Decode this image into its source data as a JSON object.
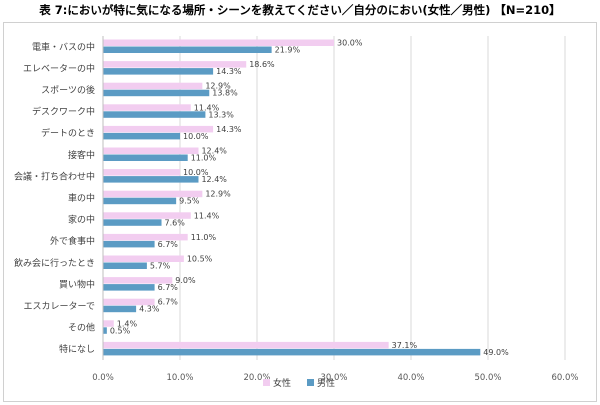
{
  "title": "表 7:においが特に気になる場所・シーンを教えてください／自分のにおい(女性／男性) 【N=210】",
  "chart_data": {
    "type": "bar",
    "orientation": "horizontal",
    "title": "表 7:においが特に気になる場所・シーンを教えてください／自分のにおい(女性／男性) 【N=210】",
    "categories": [
      "電車・バスの中",
      "エレベーターの中",
      "スポーツの後",
      "デスクワーク中",
      "デートのとき",
      "接客中",
      "会議・打ち合わせ中",
      "車の中",
      "家の中",
      "外で食事中",
      "飲み会に行ったとき",
      "買い物中",
      "エスカレーターで",
      "その他",
      "特になし"
    ],
    "series": [
      {
        "name": "女性",
        "color": "#f2cdf0",
        "values": [
          30.0,
          18.6,
          12.9,
          11.4,
          14.3,
          12.4,
          10.0,
          12.9,
          11.4,
          11.0,
          10.5,
          9.0,
          6.7,
          1.4,
          37.1
        ]
      },
      {
        "name": "男性",
        "color": "#5b9bc4",
        "values": [
          21.9,
          14.3,
          13.8,
          13.3,
          10.0,
          11.0,
          12.4,
          9.5,
          7.6,
          6.7,
          5.7,
          6.7,
          4.3,
          0.5,
          49.0
        ]
      }
    ],
    "xlim": [
      0,
      60
    ],
    "xticks": [
      0,
      10,
      20,
      30,
      40,
      50,
      60
    ],
    "tick_format": "%",
    "gridlines": true,
    "legend": "bottom-center"
  }
}
